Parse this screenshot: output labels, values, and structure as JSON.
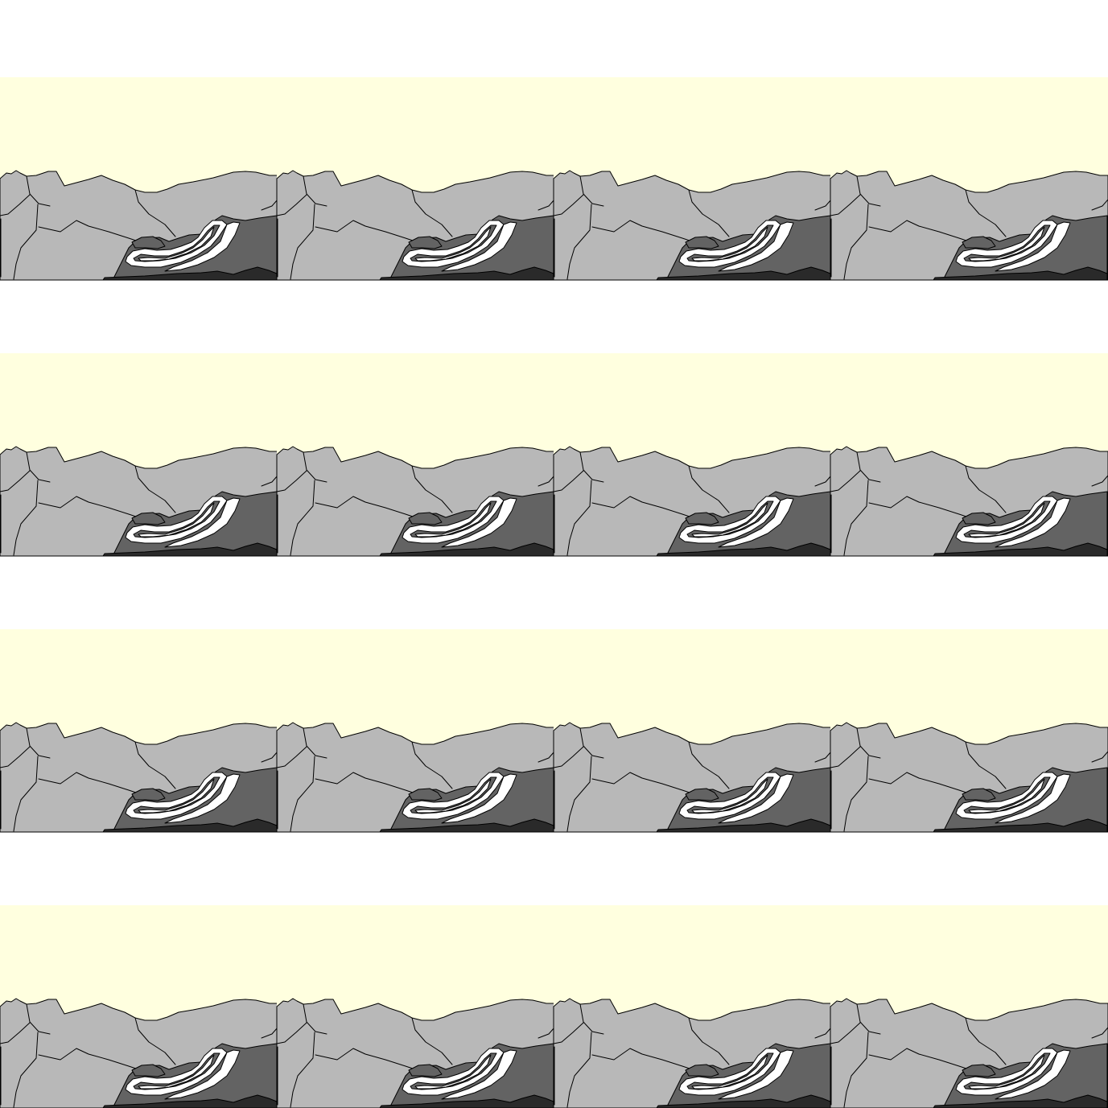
{
  "tileset": {
    "rows": 4,
    "columns": 4,
    "colors": {
      "page_background": "#ffffff",
      "sky": "#ffffdf",
      "rock_light": "#b8b8b8",
      "rock_dark": "#636363",
      "rock_darkest": "#2a2a2a",
      "strata_white": "#ffffff",
      "outline": "#000000"
    }
  }
}
